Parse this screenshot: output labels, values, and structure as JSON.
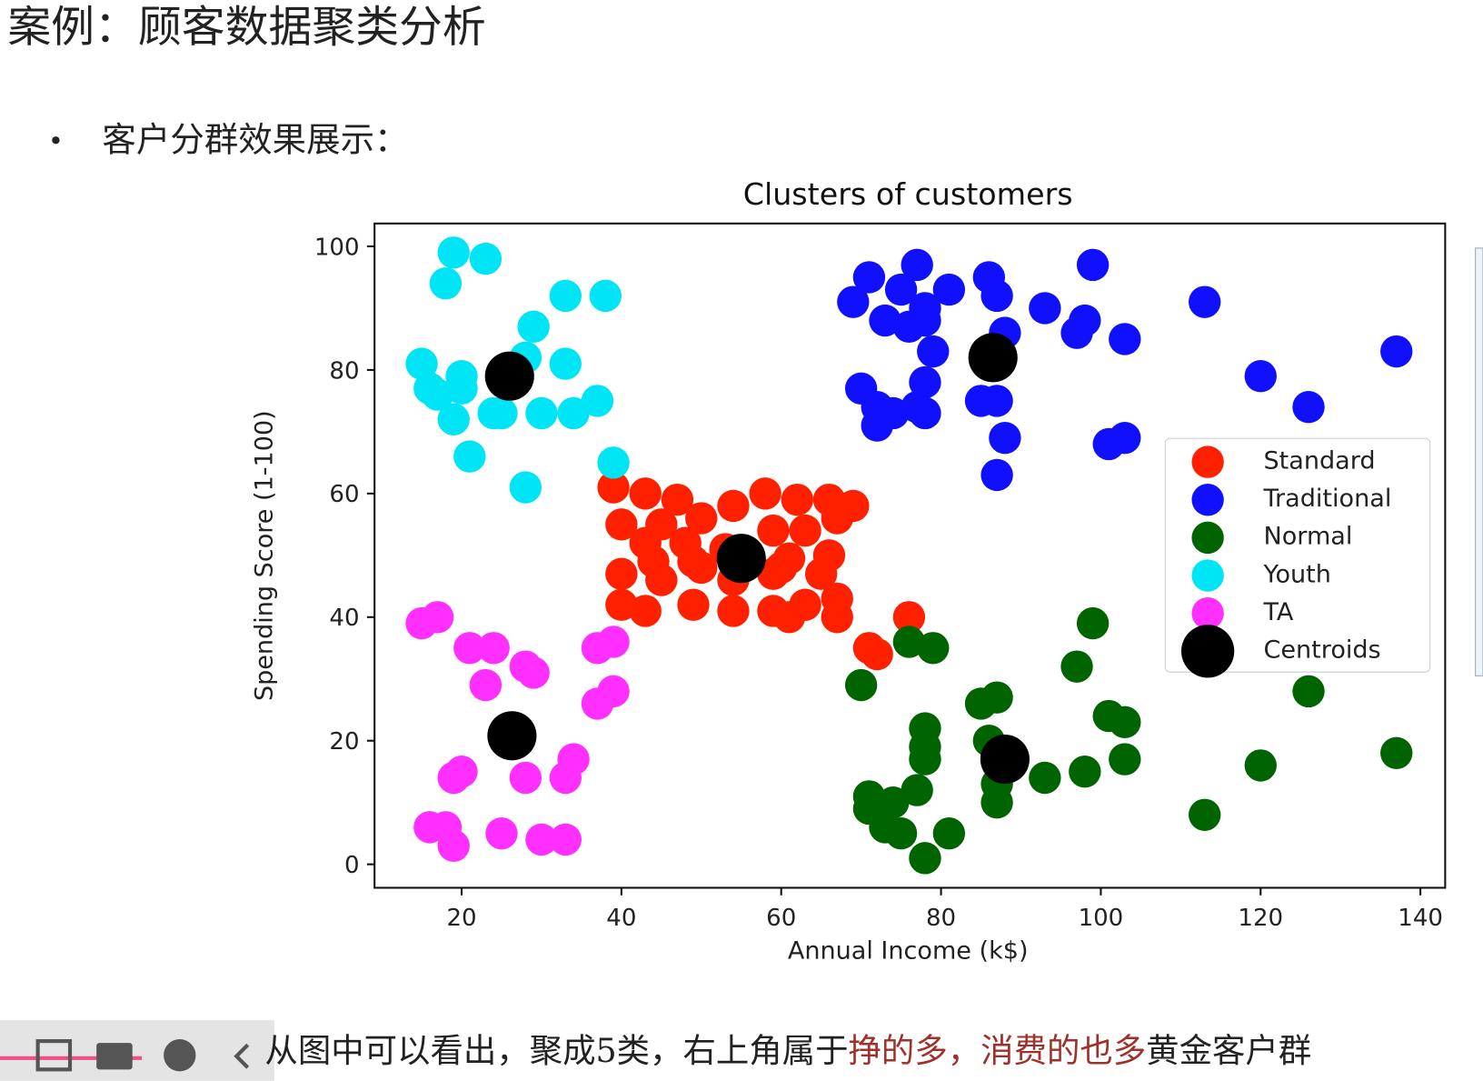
{
  "header": {
    "title": "案例：顾客数据聚类分析",
    "bullet": "客户分群效果展示："
  },
  "caption": [
    "从图中可以看出，聚成5类，右上角属于",
    "挣的多，消费的也多",
    "黄金客户群"
  ],
  "chart_data": {
    "type": "scatter",
    "title": "Clusters of customers",
    "x_label": "Annual Income (k$)",
    "y_label": "Spending Score (1-100)",
    "xlim": [
      9.1,
      143.1
    ],
    "ylim": [
      -3.8,
      103.7
    ],
    "xticks": [
      20,
      40,
      60,
      80,
      100,
      120,
      140
    ],
    "yticks": [
      0,
      20,
      40,
      60,
      80,
      100
    ],
    "grid": false,
    "legend": "right",
    "series": [
      {
        "name": "Standard",
        "color": "#ff2000",
        "x": [
          39,
          43,
          47,
          58,
          62,
          66,
          69,
          54,
          40,
          45,
          50,
          67,
          43,
          48,
          59,
          63,
          44,
          49,
          66,
          61,
          40,
          45,
          50,
          54,
          59,
          65,
          40,
          43,
          49,
          54,
          59,
          63,
          67,
          61,
          67,
          76,
          71,
          72,
          53,
          60
        ],
        "values": [
          61,
          60,
          59,
          60,
          59,
          59,
          58,
          58,
          55,
          55,
          56,
          56,
          52,
          52,
          54,
          54,
          49,
          49,
          50,
          49.5,
          47,
          46,
          48,
          46,
          47,
          47,
          42,
          41,
          42,
          41,
          41,
          42,
          43,
          40,
          40,
          40,
          35,
          34,
          51,
          48
        ]
      },
      {
        "name": "Traditional",
        "color": "#1010ff",
        "x": [
          69,
          71,
          75,
          77,
          81,
          86,
          87,
          99,
          93,
          113,
          73,
          76,
          78,
          78,
          98,
          97,
          103,
          88,
          79,
          137,
          120,
          70,
          78,
          72,
          74,
          77,
          78,
          85,
          87,
          126,
          72,
          88,
          101,
          103,
          87
        ],
        "values": [
          91,
          95,
          93,
          97,
          93,
          95,
          92,
          97,
          90,
          91,
          88,
          87,
          90,
          88,
          88,
          86,
          85,
          86,
          83,
          83,
          79,
          77,
          78,
          74,
          73,
          74,
          73,
          75,
          75,
          74,
          71,
          69,
          68,
          69,
          63
        ]
      },
      {
        "name": "Normal",
        "color": "#006400",
        "x": [
          76,
          79,
          99,
          97,
          70,
          126,
          85,
          87,
          101,
          103,
          78,
          78,
          86,
          137,
          78,
          103,
          120,
          98,
          93,
          87,
          77,
          71,
          74,
          87,
          71,
          113,
          73,
          75,
          81,
          78
        ],
        "values": [
          36,
          35,
          39,
          32,
          29,
          28,
          26,
          27,
          24,
          23,
          22,
          19,
          20,
          18,
          17,
          17,
          16,
          15,
          14,
          13,
          12,
          11,
          10,
          10,
          9,
          8,
          6,
          5,
          5,
          1
        ]
      },
      {
        "name": "Youth",
        "color": "#00e5f5",
        "x": [
          19,
          23,
          18,
          33,
          38,
          29,
          28,
          15,
          33,
          20,
          16,
          20,
          37,
          19,
          24,
          25,
          30,
          34,
          21,
          39,
          28,
          17
        ],
        "values": [
          99,
          98,
          94,
          92,
          92,
          87,
          82,
          81,
          81,
          79,
          77,
          77,
          75,
          72,
          73,
          73,
          73,
          73,
          66,
          65,
          61,
          76
        ]
      },
      {
        "name": "TA",
        "color": "#ff30ff",
        "x": [
          15,
          17,
          21,
          24,
          37,
          39,
          28,
          29,
          23,
          39,
          37,
          34,
          20,
          19,
          28,
          33,
          16,
          18,
          19,
          25,
          30,
          33
        ],
        "values": [
          39,
          40,
          35,
          35,
          35,
          36,
          32,
          31,
          29,
          28,
          26,
          17,
          15,
          14,
          14,
          14,
          6,
          6,
          3,
          5,
          4,
          4
        ]
      },
      {
        "name": "Centroids",
        "color": "#000000",
        "x": [
          55,
          86.5,
          26,
          26.3,
          88
        ],
        "values": [
          49.5,
          82,
          79,
          20.8,
          17
        ]
      }
    ]
  }
}
